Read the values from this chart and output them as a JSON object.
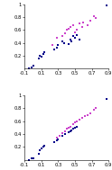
{
  "top_blue": [
    [
      -0.05,
      0.0
    ],
    [
      -0.02,
      0.02
    ],
    [
      0.0,
      0.04
    ],
    [
      0.07,
      0.15
    ],
    [
      0.08,
      0.2
    ],
    [
      0.1,
      0.18
    ],
    [
      0.12,
      0.22
    ],
    [
      0.13,
      0.25
    ],
    [
      0.25,
      0.3
    ],
    [
      0.28,
      0.33
    ],
    [
      0.3,
      0.37
    ],
    [
      0.35,
      0.42
    ],
    [
      0.37,
      0.4
    ],
    [
      0.42,
      0.38
    ],
    [
      0.44,
      0.45
    ],
    [
      0.46,
      0.42
    ],
    [
      0.48,
      0.5
    ],
    [
      0.5,
      0.48
    ],
    [
      0.52,
      0.52
    ],
    [
      0.55,
      0.45
    ],
    [
      0.88,
      0.98
    ]
  ],
  "top_magenta": [
    [
      0.23,
      0.36
    ],
    [
      0.28,
      0.48
    ],
    [
      0.35,
      0.5
    ],
    [
      0.38,
      0.55
    ],
    [
      0.4,
      0.6
    ],
    [
      0.42,
      0.62
    ],
    [
      0.45,
      0.65
    ],
    [
      0.48,
      0.68
    ],
    [
      0.5,
      0.56
    ],
    [
      0.52,
      0.6
    ],
    [
      0.55,
      0.7
    ],
    [
      0.58,
      0.65
    ],
    [
      0.6,
      0.72
    ],
    [
      0.65,
      0.68
    ],
    [
      0.68,
      0.75
    ],
    [
      0.72,
      0.82
    ],
    [
      0.75,
      0.78
    ]
  ],
  "bottom_blue": [
    [
      -0.05,
      0.0
    ],
    [
      -0.02,
      0.02
    ],
    [
      0.0,
      0.03
    ],
    [
      0.07,
      0.1
    ],
    [
      0.08,
      0.15
    ],
    [
      0.1,
      0.18
    ],
    [
      0.12,
      0.2
    ],
    [
      0.13,
      0.22
    ],
    [
      0.25,
      0.27
    ],
    [
      0.28,
      0.3
    ],
    [
      0.3,
      0.32
    ],
    [
      0.35,
      0.37
    ],
    [
      0.38,
      0.4
    ],
    [
      0.42,
      0.43
    ],
    [
      0.44,
      0.44
    ],
    [
      0.46,
      0.46
    ],
    [
      0.48,
      0.48
    ],
    [
      0.5,
      0.5
    ],
    [
      0.52,
      0.52
    ],
    [
      0.88,
      0.95
    ]
  ],
  "bottom_magenta": [
    [
      0.28,
      0.34
    ],
    [
      0.32,
      0.38
    ],
    [
      0.35,
      0.42
    ],
    [
      0.38,
      0.45
    ],
    [
      0.4,
      0.48
    ],
    [
      0.42,
      0.5
    ],
    [
      0.45,
      0.52
    ],
    [
      0.48,
      0.55
    ],
    [
      0.5,
      0.58
    ],
    [
      0.52,
      0.6
    ],
    [
      0.55,
      0.62
    ],
    [
      0.58,
      0.65
    ],
    [
      0.62,
      0.68
    ],
    [
      0.65,
      0.7
    ],
    [
      0.68,
      0.72
    ],
    [
      0.72,
      0.78
    ],
    [
      0.75,
      0.8
    ]
  ],
  "xlim": [
    -0.1,
    0.9
  ],
  "ylim": [
    0.0,
    1.0
  ],
  "xticks": [
    -0.1,
    0.1,
    0.3,
    0.5,
    0.7,
    0.9
  ],
  "yticks": [
    0.2,
    0.4,
    0.6,
    0.8,
    1.0
  ],
  "xtick_labels": [
    "-0.1",
    "0.1",
    "0.3",
    "0.5",
    "0.7",
    "0.9"
  ],
  "ytick_labels": [
    "0.2",
    "0.4",
    "0.6",
    "0.8",
    "1"
  ],
  "blue_color": "#00008b",
  "magenta_color": "#cc44cc",
  "marker": "s",
  "markersize": 1.8,
  "bg_color": "#ffffff",
  "tick_fontsize": 3.8,
  "spine_linewidth": 0.4
}
